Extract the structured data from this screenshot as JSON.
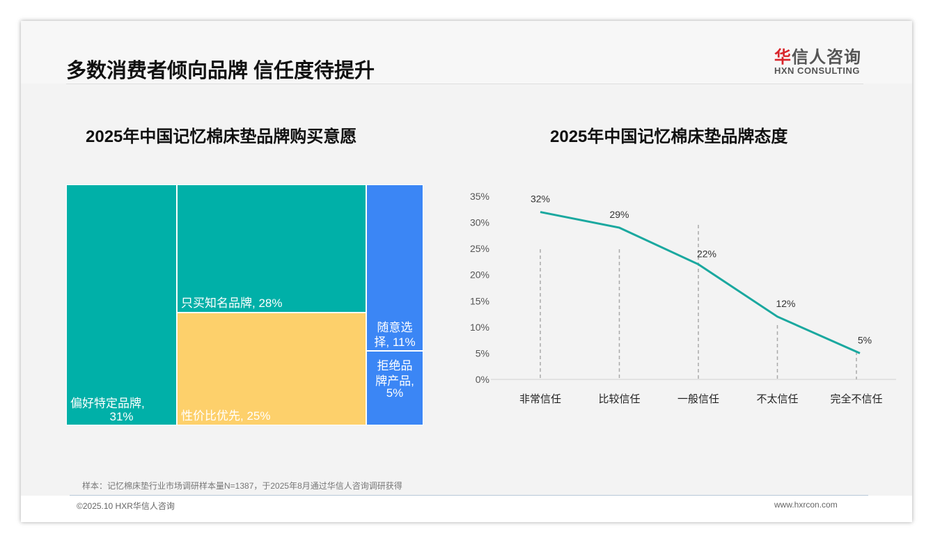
{
  "header": {
    "title": "多数消费者倾向品牌 信任度待提升",
    "logo_cn_red": "华",
    "logo_cn": "信人咨询",
    "logo_en": "HXN CONSULTING"
  },
  "footer": {
    "note": "样本：记忆棉床垫行业市场调研样本量N=1387，于2025年8月通过华信人咨询调研获得",
    "copyright": "©2025.10 HXR华信人咨询",
    "website": "www.hxrcon.com"
  },
  "colors": {
    "teal": "#00b0a8",
    "yellow": "#fdd06b",
    "blue": "#3b86f5",
    "line": "#1aa89f"
  },
  "chart_data": [
    {
      "type": "treemap",
      "title": "2025年中国记忆棉床垫品牌购买意愿",
      "items": [
        {
          "label": "偏好特定品牌",
          "value": 31
        },
        {
          "label": "只买知名品牌",
          "value": 28
        },
        {
          "label": "性价比优先",
          "value": 25
        },
        {
          "label": "随意选择",
          "value": 11
        },
        {
          "label": "拒绝品牌产品",
          "value": 5
        }
      ],
      "display": [
        "偏好特定品牌,",
        "31%",
        "只买知名品牌, 28%",
        "性价比优先, 25%",
        "随意选",
        "择, 11%",
        "拒绝品",
        "牌产品,",
        "5%"
      ]
    },
    {
      "type": "line",
      "title": "2025年中国记忆棉床垫品牌态度",
      "categories": [
        "非常信任",
        "比较信任",
        "一般信任",
        "不太信任",
        "完全不信任"
      ],
      "values": [
        32,
        29,
        22,
        12,
        5
      ],
      "labels": [
        "32%",
        "29%",
        "22%",
        "12%",
        "5%"
      ],
      "ylim": [
        0,
        35
      ],
      "yticks": [
        "0%",
        "5%",
        "10%",
        "15%",
        "20%",
        "25%",
        "30%",
        "35%"
      ]
    }
  ]
}
